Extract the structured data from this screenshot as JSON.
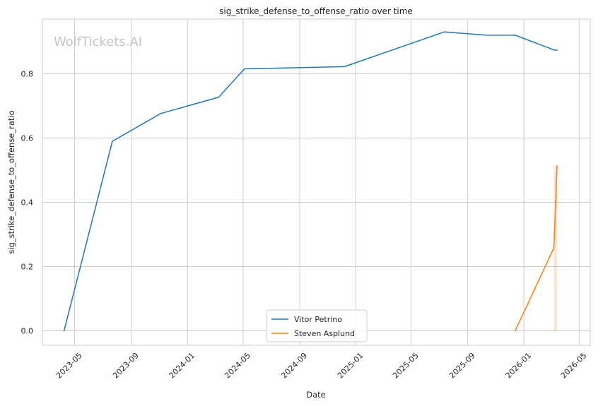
{
  "chart_data": {
    "type": "line",
    "title": "sig_strike_defense_to_offense_ratio over time",
    "xlabel": "Date",
    "ylabel": "sig_strike_defense_to_offense_ratio",
    "watermark": "WolfTickets.AI",
    "xlim": [
      "2023-02-20",
      "2026-05-25"
    ],
    "ylim": [
      -0.045,
      0.97
    ],
    "x_ticks": [
      "2023-05",
      "2023-09",
      "2024-01",
      "2024-05",
      "2024-09",
      "2025-01",
      "2025-05",
      "2025-09",
      "2026-01",
      "2026-05"
    ],
    "y_ticks": [
      "0.0",
      "0.2",
      "0.4",
      "0.6",
      "0.8"
    ],
    "grid": true,
    "legend_position": "bottom-center",
    "series": [
      {
        "name": "Vitor Petrino",
        "color": "#1f77b4",
        "points": [
          {
            "x": "2023-04-08",
            "y": 0.0
          },
          {
            "x": "2023-07-22",
            "y": 0.59
          },
          {
            "x": "2023-11-04",
            "y": 0.676
          },
          {
            "x": "2024-03-09",
            "y": 0.727
          },
          {
            "x": "2024-05-04",
            "y": 0.815
          },
          {
            "x": "2024-12-07",
            "y": 0.822
          },
          {
            "x": "2025-07-12",
            "y": 0.93
          },
          {
            "x": "2025-10-11",
            "y": 0.92
          },
          {
            "x": "2025-12-13",
            "y": 0.92
          },
          {
            "x": "2026-03-07",
            "y": 0.874
          },
          {
            "x": "2026-03-14",
            "y": 0.873
          }
        ]
      },
      {
        "name": "Steven Asplund",
        "color": "#ff7f0e",
        "points": [
          {
            "x": "2025-12-13",
            "y": 0.0
          },
          {
            "x": "2026-03-07",
            "y": 0.258
          },
          {
            "x": "2026-03-14",
            "y": 0.514
          }
        ],
        "band": {
          "x": "2026-03-07",
          "y_low": 0.0,
          "y_high": 0.514
        }
      }
    ]
  }
}
